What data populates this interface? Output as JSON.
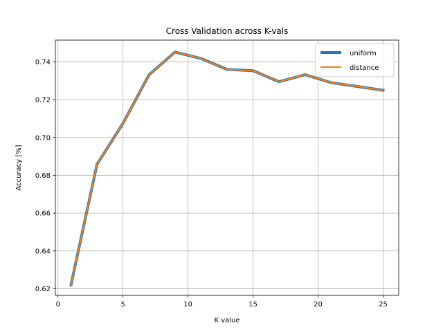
{
  "chart_data": {
    "type": "line",
    "title": "Cross Validation across K-vals",
    "xlabel": "K value",
    "ylabel": "Accuracy [%]",
    "xlim": [
      -0.2,
      26.2
    ],
    "ylim": [
      0.6165,
      0.7515
    ],
    "xticks": [
      0,
      5,
      10,
      15,
      20,
      25
    ],
    "yticks": [
      0.62,
      0.64,
      0.66,
      0.68,
      0.7,
      0.72,
      0.74
    ],
    "ytick_labels": [
      "0.62",
      "0.64",
      "0.66",
      "0.68",
      "0.70",
      "0.72",
      "0.74"
    ],
    "grid": true,
    "legend_position": "top-right",
    "x": [
      1,
      3,
      5,
      7,
      9,
      11,
      13,
      15,
      17,
      19,
      21,
      23,
      25
    ],
    "series": [
      {
        "name": "uniform",
        "color": "#1f77b4",
        "values": [
          0.622,
          0.6858,
          0.7075,
          0.7331,
          0.7452,
          0.7418,
          0.736,
          0.7353,
          0.7295,
          0.7332,
          0.729,
          0.727,
          0.725
        ]
      },
      {
        "name": "distance",
        "color": "#ff7f0e",
        "values": [
          0.622,
          0.6858,
          0.7075,
          0.7331,
          0.7452,
          0.7418,
          0.736,
          0.7353,
          0.7295,
          0.7332,
          0.729,
          0.727,
          0.725
        ]
      }
    ]
  }
}
